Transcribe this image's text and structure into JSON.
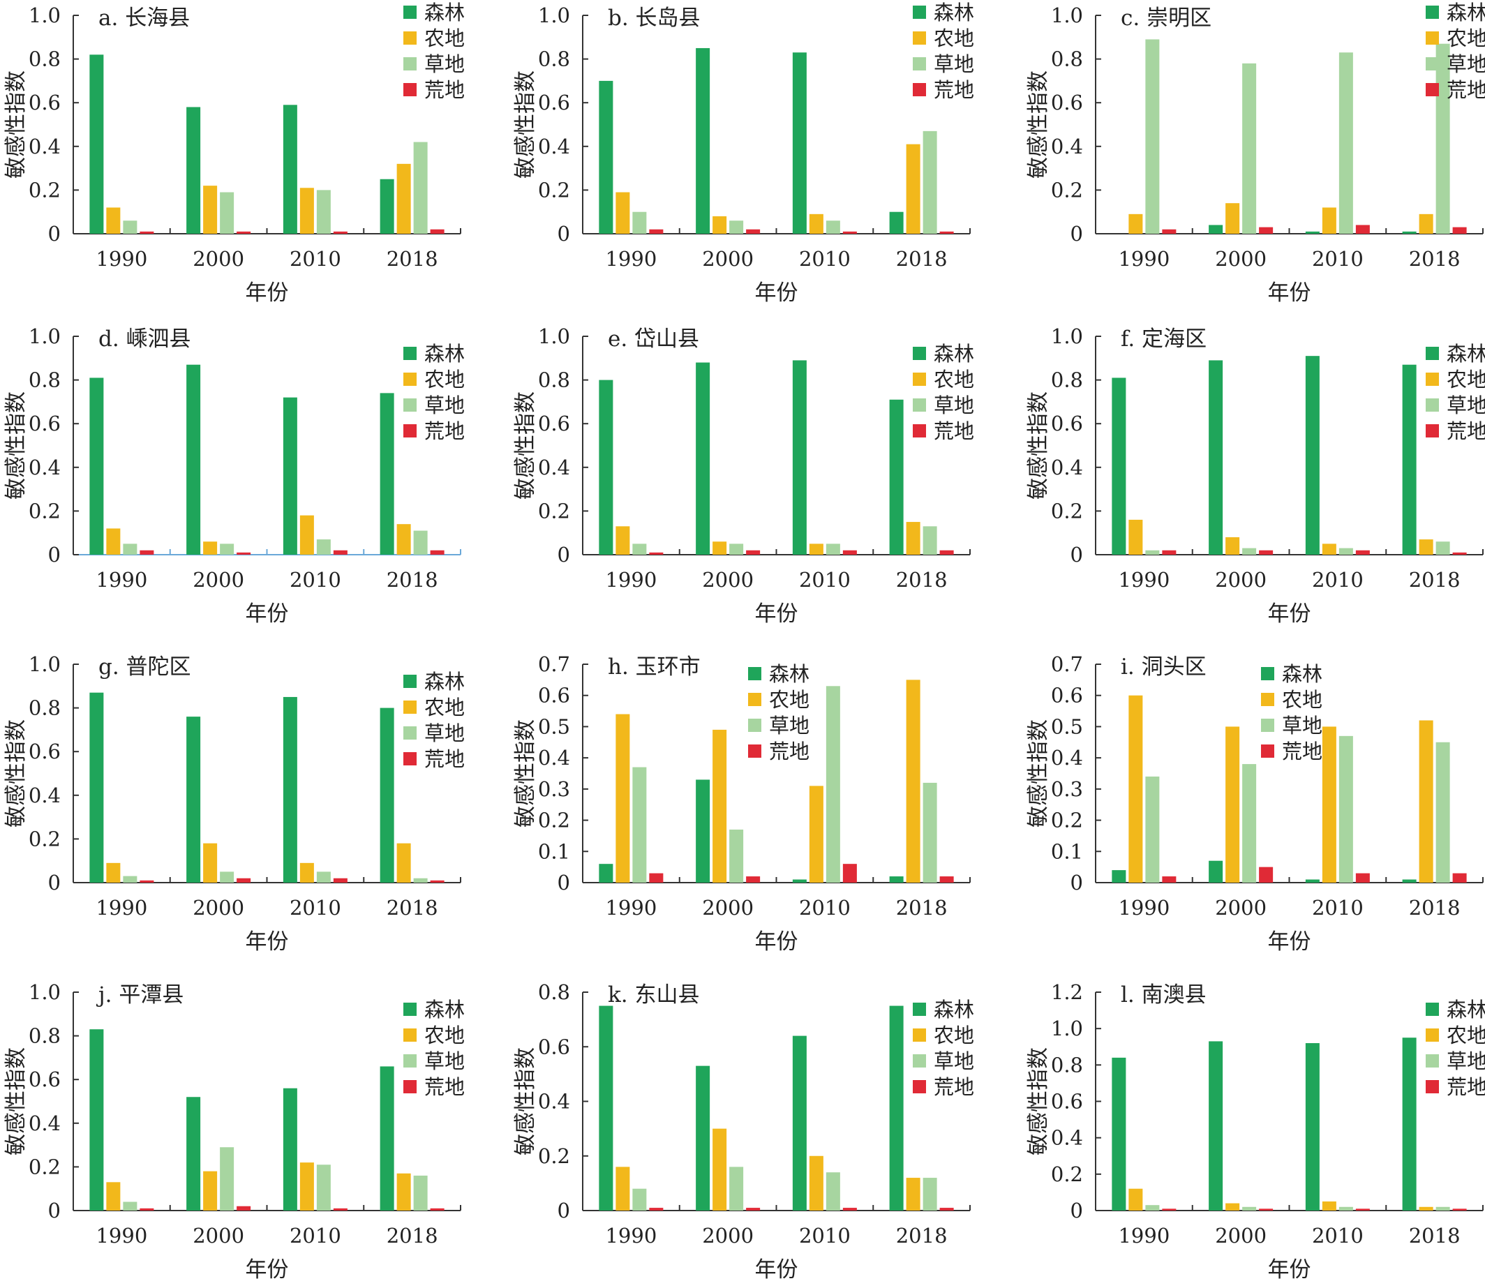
{
  "colors": {
    "森林": "#1fa55a",
    "农地": "#f2b81b",
    "草地": "#a7d5a0",
    "荒地": "#e02a36",
    "axis": "#333333",
    "axis_blue": "#6aa8d8"
  },
  "chart_data": [
    {
      "type": "bar",
      "title": "a. 长海县",
      "xlabel": "年份",
      "ylabel": "敏感性指数",
      "categories": [
        "1990",
        "2000",
        "2010",
        "2018"
      ],
      "ylim": [
        0,
        1.0
      ],
      "yticks": [
        "0",
        "0.2",
        "0.4",
        "0.6",
        "0.8",
        "1.0"
      ],
      "series": [
        {
          "name": "森林",
          "values": [
            0.82,
            0.58,
            0.59,
            0.25
          ]
        },
        {
          "name": "农地",
          "values": [
            0.12,
            0.22,
            0.21,
            0.32
          ]
        },
        {
          "name": "草地",
          "values": [
            0.06,
            0.19,
            0.2,
            0.42
          ]
        },
        {
          "name": "荒地",
          "values": [
            0.01,
            0.01,
            0.01,
            0.02
          ]
        }
      ]
    },
    {
      "type": "bar",
      "title": "b. 长岛县",
      "xlabel": "年份",
      "ylabel": "敏感性指数",
      "categories": [
        "1990",
        "2000",
        "2010",
        "2018"
      ],
      "ylim": [
        0,
        1.0
      ],
      "yticks": [
        "0",
        "0.2",
        "0.4",
        "0.6",
        "0.8",
        "1.0"
      ],
      "series": [
        {
          "name": "森林",
          "values": [
            0.7,
            0.85,
            0.83,
            0.1
          ]
        },
        {
          "name": "农地",
          "values": [
            0.19,
            0.08,
            0.09,
            0.41
          ]
        },
        {
          "name": "草地",
          "values": [
            0.1,
            0.06,
            0.06,
            0.47
          ]
        },
        {
          "name": "荒地",
          "values": [
            0.02,
            0.02,
            0.01,
            0.01
          ]
        }
      ]
    },
    {
      "type": "bar",
      "title": "c. 崇明区",
      "xlabel": "年份",
      "ylabel": "敏感性指数",
      "categories": [
        "1990",
        "2000",
        "2010",
        "2018"
      ],
      "ylim": [
        0,
        1.0
      ],
      "yticks": [
        "0",
        "0.2",
        "0.4",
        "0.6",
        "0.8",
        "1.0"
      ],
      "series": [
        {
          "name": "森林",
          "values": [
            0,
            0.04,
            0.01,
            0.01
          ]
        },
        {
          "name": "农地",
          "values": [
            0.09,
            0.14,
            0.12,
            0.09
          ]
        },
        {
          "name": "草地",
          "values": [
            0.89,
            0.78,
            0.83,
            0.87
          ]
        },
        {
          "name": "荒地",
          "values": [
            0.02,
            0.03,
            0.04,
            0.03
          ]
        }
      ]
    },
    {
      "type": "bar",
      "title": "d. 嵊泗县",
      "xlabel": "年份",
      "ylabel": "敏感性指数",
      "categories": [
        "1990",
        "2000",
        "2010",
        "2018"
      ],
      "ylim": [
        0,
        1.0
      ],
      "yticks": [
        "0",
        "0.2",
        "0.4",
        "0.6",
        "0.8",
        "1.0"
      ],
      "series": [
        {
          "name": "森林",
          "values": [
            0.81,
            0.87,
            0.72,
            0.74
          ]
        },
        {
          "name": "农地",
          "values": [
            0.12,
            0.06,
            0.18,
            0.14
          ]
        },
        {
          "name": "草地",
          "values": [
            0.05,
            0.05,
            0.07,
            0.11
          ]
        },
        {
          "name": "荒地",
          "values": [
            0.02,
            0.01,
            0.02,
            0.02
          ]
        }
      ]
    },
    {
      "type": "bar",
      "title": "e. 岱山县",
      "xlabel": "年份",
      "ylabel": "敏感性指数",
      "categories": [
        "1990",
        "2000",
        "2010",
        "2018"
      ],
      "ylim": [
        0,
        1.0
      ],
      "yticks": [
        "0",
        "0.2",
        "0.4",
        "0.6",
        "0.8",
        "1.0"
      ],
      "series": [
        {
          "name": "森林",
          "values": [
            0.8,
            0.88,
            0.89,
            0.71
          ]
        },
        {
          "name": "农地",
          "values": [
            0.13,
            0.06,
            0.05,
            0.15
          ]
        },
        {
          "name": "草地",
          "values": [
            0.05,
            0.05,
            0.05,
            0.13
          ]
        },
        {
          "name": "荒地",
          "values": [
            0.01,
            0.02,
            0.02,
            0.02
          ]
        }
      ]
    },
    {
      "type": "bar",
      "title": "f. 定海区",
      "xlabel": "年份",
      "ylabel": "敏感性指数",
      "categories": [
        "1990",
        "2000",
        "2010",
        "2018"
      ],
      "ylim": [
        0,
        1.0
      ],
      "yticks": [
        "0",
        "0.2",
        "0.4",
        "0.6",
        "0.8",
        "1.0"
      ],
      "series": [
        {
          "name": "森林",
          "values": [
            0.81,
            0.89,
            0.91,
            0.87
          ]
        },
        {
          "name": "农地",
          "values": [
            0.16,
            0.08,
            0.05,
            0.07
          ]
        },
        {
          "name": "草地",
          "values": [
            0.02,
            0.03,
            0.03,
            0.06
          ]
        },
        {
          "name": "荒地",
          "values": [
            0.02,
            0.02,
            0.02,
            0.01
          ]
        }
      ]
    },
    {
      "type": "bar",
      "title": "g. 普陀区",
      "xlabel": "年份",
      "ylabel": "敏感性指数",
      "categories": [
        "1990",
        "2000",
        "2010",
        "2018"
      ],
      "ylim": [
        0,
        1.0
      ],
      "yticks": [
        "0",
        "0.2",
        "0.4",
        "0.6",
        "0.8",
        "1.0"
      ],
      "series": [
        {
          "name": "森林",
          "values": [
            0.87,
            0.76,
            0.85,
            0.8
          ]
        },
        {
          "name": "农地",
          "values": [
            0.09,
            0.18,
            0.09,
            0.18
          ]
        },
        {
          "name": "草地",
          "values": [
            0.03,
            0.05,
            0.05,
            0.02
          ]
        },
        {
          "name": "荒地",
          "values": [
            0.01,
            0.02,
            0.02,
            0.01
          ]
        }
      ]
    },
    {
      "type": "bar",
      "title": "h. 玉环市",
      "xlabel": "年份",
      "ylabel": "敏感性指数",
      "categories": [
        "1990",
        "2000",
        "2010",
        "2018"
      ],
      "ylim": [
        0,
        0.7
      ],
      "yticks": [
        "0",
        "0.1",
        "0.2",
        "0.3",
        "0.4",
        "0.5",
        "0.6",
        "0.7"
      ],
      "series": [
        {
          "name": "森林",
          "values": [
            0.06,
            0.33,
            0.01,
            0.02
          ]
        },
        {
          "name": "农地",
          "values": [
            0.54,
            0.49,
            0.31,
            0.65
          ]
        },
        {
          "name": "草地",
          "values": [
            0.37,
            0.17,
            0.63,
            0.32
          ]
        },
        {
          "name": "荒地",
          "values": [
            0.03,
            0.02,
            0.06,
            0.02
          ]
        }
      ]
    },
    {
      "type": "bar",
      "title": "i. 洞头区",
      "xlabel": "年份",
      "ylabel": "敏感性指数",
      "categories": [
        "1990",
        "2000",
        "2010",
        "2018"
      ],
      "ylim": [
        0,
        0.7
      ],
      "yticks": [
        "0",
        "0.1",
        "0.2",
        "0.3",
        "0.4",
        "0.5",
        "0.6",
        "0.7"
      ],
      "series": [
        {
          "name": "森林",
          "values": [
            0.04,
            0.07,
            0.01,
            0.01
          ]
        },
        {
          "name": "农地",
          "values": [
            0.6,
            0.5,
            0.5,
            0.52
          ]
        },
        {
          "name": "草地",
          "values": [
            0.34,
            0.38,
            0.47,
            0.45
          ]
        },
        {
          "name": "荒地",
          "values": [
            0.02,
            0.05,
            0.03,
            0.03
          ]
        }
      ]
    },
    {
      "type": "bar",
      "title": "j. 平潭县",
      "xlabel": "年份",
      "ylabel": "敏感性指数",
      "categories": [
        "1990",
        "2000",
        "2010",
        "2018"
      ],
      "ylim": [
        0,
        1.0
      ],
      "yticks": [
        "0",
        "0.2",
        "0.4",
        "0.6",
        "0.8",
        "1.0"
      ],
      "series": [
        {
          "name": "森林",
          "values": [
            0.83,
            0.52,
            0.56,
            0.66
          ]
        },
        {
          "name": "农地",
          "values": [
            0.13,
            0.18,
            0.22,
            0.17
          ]
        },
        {
          "name": "草地",
          "values": [
            0.04,
            0.29,
            0.21,
            0.16
          ]
        },
        {
          "name": "荒地",
          "values": [
            0.01,
            0.02,
            0.01,
            0.01
          ]
        }
      ]
    },
    {
      "type": "bar",
      "title": "k. 东山县",
      "xlabel": "年份",
      "ylabel": "敏感性指数",
      "categories": [
        "1990",
        "2000",
        "2010",
        "2018"
      ],
      "ylim": [
        0,
        0.8
      ],
      "yticks": [
        "0",
        "0.2",
        "0.4",
        "0.6",
        "0.8"
      ],
      "series": [
        {
          "name": "森林",
          "values": [
            0.75,
            0.53,
            0.64,
            0.75
          ]
        },
        {
          "name": "农地",
          "values": [
            0.16,
            0.3,
            0.2,
            0.12
          ]
        },
        {
          "name": "草地",
          "values": [
            0.08,
            0.16,
            0.14,
            0.12
          ]
        },
        {
          "name": "荒地",
          "values": [
            0.01,
            0.01,
            0.01,
            0.01
          ]
        }
      ]
    },
    {
      "type": "bar",
      "title": "l. 南澳县",
      "xlabel": "年份",
      "ylabel": "敏感性指数",
      "categories": [
        "1990",
        "2000",
        "2010",
        "2018"
      ],
      "ylim": [
        0,
        1.2
      ],
      "yticks": [
        "0",
        "0.2",
        "0.4",
        "0.6",
        "0.8",
        "1.0",
        "1.2"
      ],
      "series": [
        {
          "name": "森林",
          "values": [
            0.84,
            0.93,
            0.92,
            0.95
          ]
        },
        {
          "name": "农地",
          "values": [
            0.12,
            0.04,
            0.05,
            0.02
          ]
        },
        {
          "name": "草地",
          "values": [
            0.03,
            0.02,
            0.02,
            0.02
          ]
        },
        {
          "name": "荒地",
          "values": [
            0.01,
            0.01,
            0.01,
            0.01
          ]
        }
      ]
    }
  ]
}
